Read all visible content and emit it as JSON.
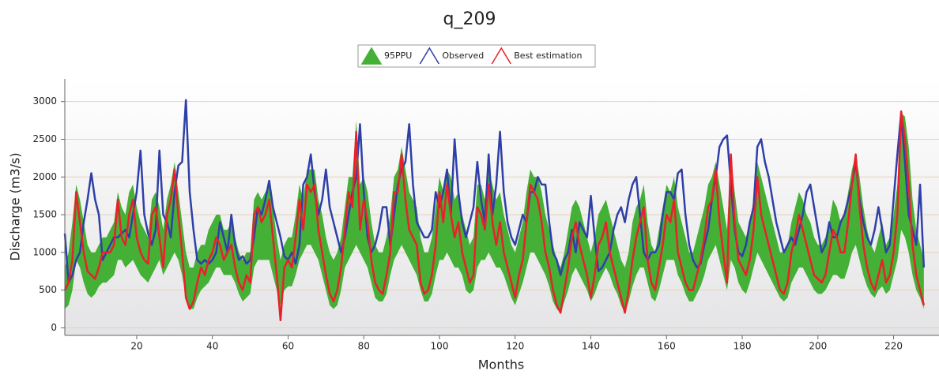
{
  "chart_data": {
    "type": "line",
    "title": "q_209",
    "x_label": "Months",
    "y_label": "Discharge (m3/s)",
    "x": [
      1,
      2,
      3,
      4,
      5,
      6,
      7,
      8,
      9,
      10,
      11,
      12,
      13,
      14,
      15,
      16,
      17,
      18,
      19,
      20,
      21,
      22,
      23,
      24,
      25,
      26,
      27,
      28,
      29,
      30,
      31,
      32,
      33,
      34,
      35,
      36,
      37,
      38,
      39,
      40,
      41,
      42,
      43,
      44,
      45,
      46,
      47,
      48,
      49,
      50,
      51,
      52,
      53,
      54,
      55,
      56,
      57,
      58,
      59,
      60,
      61,
      62,
      63,
      64,
      65,
      66,
      67,
      68,
      69,
      70,
      71,
      72,
      73,
      74,
      75,
      76,
      77,
      78,
      79,
      80,
      81,
      82,
      83,
      84,
      85,
      86,
      87,
      88,
      89,
      90,
      91,
      92,
      93,
      94,
      95,
      96,
      97,
      98,
      99,
      100,
      101,
      102,
      103,
      104,
      105,
      106,
      107,
      108,
      109,
      110,
      111,
      112,
      113,
      114,
      115,
      116,
      117,
      118,
      119,
      120,
      121,
      122,
      123,
      124,
      125,
      126,
      127,
      128,
      129,
      130,
      131,
      132,
      133,
      134,
      135,
      136,
      137,
      138,
      139,
      140,
      141,
      142,
      143,
      144,
      145,
      146,
      147,
      148,
      149,
      150,
      151,
      152,
      153,
      154,
      155,
      156,
      157,
      158,
      159,
      160,
      161,
      162,
      163,
      164,
      165,
      166,
      167,
      168,
      169,
      170,
      171,
      172,
      173,
      174,
      175,
      176,
      177,
      178,
      179,
      180,
      181,
      182,
      183,
      184,
      185,
      186,
      187,
      188,
      189,
      190,
      191,
      192,
      193,
      194,
      195,
      196,
      197,
      198,
      199,
      200,
      201,
      202,
      203,
      204,
      205,
      206,
      207,
      208,
      209,
      210,
      211,
      212,
      213,
      214,
      215,
      216,
      217,
      218,
      219,
      220,
      221,
      222,
      223,
      224,
      225,
      226,
      227,
      228
    ],
    "band": {
      "name": "95PPU",
      "color": "#44b035",
      "lower": [
        250,
        300,
        500,
        900,
        800,
        600,
        450,
        400,
        450,
        550,
        600,
        600,
        650,
        700,
        900,
        900,
        800,
        850,
        900,
        800,
        700,
        650,
        600,
        700,
        800,
        900,
        700,
        800,
        900,
        1000,
        900,
        700,
        400,
        250,
        250,
        400,
        500,
        550,
        600,
        700,
        800,
        800,
        700,
        700,
        700,
        600,
        450,
        350,
        400,
        450,
        800,
        900,
        900,
        900,
        900,
        700,
        500,
        300,
        500,
        550,
        550,
        700,
        900,
        1000,
        1100,
        1100,
        1000,
        900,
        700,
        500,
        300,
        250,
        300,
        500,
        800,
        900,
        1000,
        1100,
        1000,
        900,
        800,
        600,
        400,
        350,
        350,
        450,
        700,
        900,
        1000,
        1100,
        1000,
        900,
        800,
        700,
        500,
        350,
        350,
        450,
        700,
        900,
        900,
        1000,
        900,
        800,
        800,
        700,
        500,
        450,
        500,
        800,
        900,
        900,
        1000,
        900,
        800,
        800,
        700,
        550,
        400,
        300,
        450,
        600,
        800,
        1000,
        1000,
        900,
        800,
        700,
        550,
        350,
        250,
        200,
        350,
        500,
        700,
        800,
        700,
        600,
        500,
        350,
        450,
        600,
        700,
        800,
        700,
        550,
        450,
        300,
        200,
        350,
        550,
        700,
        800,
        800,
        600,
        400,
        350,
        500,
        700,
        900,
        900,
        900,
        700,
        600,
        450,
        350,
        350,
        450,
        550,
        700,
        900,
        1000,
        1100,
        900,
        700,
        500,
        900,
        800,
        600,
        500,
        450,
        600,
        800,
        1000,
        900,
        800,
        700,
        600,
        500,
        400,
        350,
        400,
        600,
        700,
        800,
        800,
        700,
        600,
        500,
        450,
        450,
        500,
        600,
        700,
        700,
        650,
        650,
        800,
        1000,
        1100,
        900,
        700,
        550,
        450,
        400,
        500,
        550,
        450,
        500,
        700,
        900,
        1300,
        1200,
        1000,
        700,
        500,
        400,
        250
      ],
      "upper": [
        800,
        1000,
        1400,
        1900,
        1700,
        1400,
        1100,
        1000,
        1000,
        1100,
        1200,
        1200,
        1300,
        1400,
        1800,
        1600,
        1500,
        1800,
        1900,
        1600,
        1400,
        1300,
        1200,
        1700,
        1800,
        1600,
        1300,
        1700,
        1900,
        2200,
        1800,
        1400,
        1000,
        800,
        800,
        1000,
        1100,
        1100,
        1300,
        1400,
        1500,
        1500,
        1300,
        1300,
        1400,
        1200,
        1000,
        900,
        1000,
        1000,
        1700,
        1800,
        1700,
        1800,
        1900,
        1600,
        1200,
        900,
        1100,
        1200,
        1200,
        1500,
        1900,
        1700,
        2100,
        2100,
        2100,
        1700,
        1500,
        1200,
        1000,
        900,
        1000,
        1200,
        1600,
        2000,
        2000,
        2750,
        1900,
        2000,
        1800,
        1400,
        1100,
        1000,
        1000,
        1200,
        1500,
        2000,
        2100,
        2400,
        2100,
        1800,
        1700,
        1600,
        1200,
        1000,
        1000,
        1200,
        1600,
        2000,
        1800,
        2100,
        2000,
        1700,
        1800,
        1500,
        1300,
        1100,
        1200,
        1900,
        1900,
        1700,
        2100,
        1900,
        1700,
        1800,
        1500,
        1300,
        1100,
        1000,
        1200,
        1400,
        1800,
        2100,
        2000,
        2000,
        1800,
        1500,
        1300,
        1100,
        900,
        800,
        1000,
        1300,
        1600,
        1700,
        1600,
        1400,
        1200,
        1000,
        1200,
        1500,
        1600,
        1700,
        1500,
        1300,
        1100,
        900,
        800,
        1000,
        1400,
        1600,
        1700,
        1900,
        1400,
        1100,
        1000,
        1300,
        1600,
        1900,
        1800,
        2000,
        1600,
        1400,
        1200,
        1000,
        1000,
        1200,
        1400,
        1600,
        1900,
        2000,
        2200,
        1900,
        1600,
        1300,
        2300,
        1800,
        1400,
        1300,
        1200,
        1400,
        1700,
        2200,
        2000,
        1800,
        1600,
        1400,
        1200,
        1000,
        1000,
        1100,
        1400,
        1600,
        1800,
        1700,
        1500,
        1400,
        1200,
        1100,
        1100,
        1200,
        1400,
        1700,
        1600,
        1400,
        1500,
        1800,
        2100,
        2300,
        2000,
        1600,
        1300,
        1100,
        1000,
        1200,
        1400,
        1100,
        1200,
        1500,
        1900,
        2850,
        2800,
        2400,
        1700,
        1300,
        1100,
        900
      ]
    },
    "series": [
      {
        "name": "Observed",
        "color": "#2f3fa8",
        "values": [
          1250,
          600,
          700,
          900,
          1000,
          1400,
          1700,
          2050,
          1700,
          1500,
          900,
          1000,
          1100,
          1200,
          1200,
          1250,
          1300,
          1200,
          1500,
          1800,
          2350,
          1500,
          1250,
          1100,
          1300,
          2350,
          1500,
          1400,
          1200,
          1800,
          2150,
          2200,
          3020,
          1800,
          1300,
          900,
          850,
          900,
          850,
          900,
          1000,
          1400,
          1200,
          1000,
          1500,
          1100,
          900,
          950,
          850,
          900,
          1200,
          1600,
          1500,
          1700,
          1950,
          1600,
          1400,
          1200,
          950,
          900,
          1000,
          850,
          1100,
          1900,
          2000,
          2300,
          1800,
          1500,
          1700,
          2100,
          1600,
          1400,
          1200,
          1000,
          1200,
          1500,
          1800,
          2000,
          2700,
          1800,
          1200,
          1000,
          1100,
          1300,
          1600,
          1600,
          1100,
          1500,
          1900,
          2100,
          2200,
          2700,
          1900,
          1400,
          1300,
          1200,
          1200,
          1300,
          1800,
          1600,
          1800,
          2100,
          1500,
          2500,
          1800,
          1400,
          1200,
          1400,
          1600,
          2200,
          1700,
          1400,
          2300,
          1500,
          1900,
          2600,
          1800,
          1400,
          1200,
          1100,
          1300,
          1500,
          1400,
          1800,
          1800,
          2000,
          1900,
          1900,
          1400,
          1000,
          900,
          700,
          900,
          1000,
          1300,
          1000,
          1400,
          1300,
          1200,
          1750,
          1200,
          750,
          800,
          900,
          1000,
          1300,
          1500,
          1600,
          1400,
          1700,
          1900,
          2000,
          1500,
          1000,
          900,
          1000,
          1000,
          1100,
          1500,
          1800,
          1800,
          1700,
          2050,
          2100,
          1500,
          1100,
          900,
          800,
          850,
          1100,
          1300,
          1700,
          2000,
          2400,
          2500,
          2550,
          1900,
          1300,
          1000,
          950,
          1100,
          1400,
          1600,
          2400,
          2500,
          2200,
          2000,
          1700,
          1400,
          1200,
          1000,
          1100,
          1200,
          1100,
          1300,
          1500,
          1800,
          1900,
          1600,
          1300,
          1000,
          1100,
          1400,
          1200,
          1200,
          1400,
          1500,
          1700,
          1900,
          2200,
          1700,
          1400,
          1200,
          1100,
          1300,
          1600,
          1300,
          1000,
          1100,
          1700,
          2300,
          2850,
          2200,
          1500,
          1300,
          1100,
          1900,
          800
        ]
      },
      {
        "name": "Best estimation",
        "color": "#e8222a",
        "values": [
          500,
          600,
          900,
          1800,
          1400,
          1000,
          750,
          700,
          650,
          800,
          1000,
          1000,
          1000,
          1100,
          1700,
          1200,
          1100,
          1500,
          1700,
          1200,
          1000,
          900,
          850,
          1500,
          1600,
          1200,
          800,
          1500,
          1700,
          2100,
          1500,
          1000,
          400,
          250,
          350,
          600,
          800,
          700,
          900,
          1000,
          1200,
          1100,
          900,
          1000,
          1100,
          800,
          600,
          500,
          700,
          600,
          1500,
          1600,
          1400,
          1500,
          1700,
          1200,
          700,
          100,
          800,
          900,
          800,
          1200,
          1700,
          1300,
          1900,
          1800,
          1900,
          1300,
          1000,
          700,
          450,
          350,
          500,
          800,
          1300,
          1800,
          1600,
          2600,
          1300,
          1700,
          1400,
          900,
          600,
          500,
          450,
          700,
          1000,
          1800,
          1800,
          2300,
          1700,
          1300,
          1200,
          1100,
          600,
          450,
          500,
          700,
          1100,
          1800,
          1400,
          1900,
          1500,
          1200,
          1400,
          1000,
          800,
          600,
          700,
          1600,
          1500,
          1300,
          1900,
          1400,
          1100,
          1400,
          1000,
          800,
          600,
          400,
          700,
          900,
          1400,
          1900,
          1800,
          1700,
          1400,
          1000,
          800,
          500,
          300,
          200,
          500,
          800,
          1200,
          1400,
          1100,
          900,
          700,
          400,
          700,
          1100,
          1200,
          1400,
          1000,
          800,
          600,
          400,
          200,
          500,
          900,
          1200,
          1400,
          1600,
          900,
          600,
          500,
          800,
          1100,
          1500,
          1400,
          1700,
          1000,
          800,
          600,
          500,
          500,
          700,
          900,
          1200,
          1600,
          1700,
          2100,
          1400,
          1000,
          600,
          2300,
          1400,
          900,
          800,
          700,
          900,
          1300,
          2000,
          1500,
          1300,
          1100,
          900,
          700,
          500,
          450,
          600,
          1000,
          1200,
          1500,
          1300,
          1100,
          900,
          700,
          650,
          600,
          700,
          1000,
          1300,
          1200,
          1000,
          1000,
          1400,
          1900,
          2300,
          1600,
          1100,
          800,
          600,
          500,
          700,
          900,
          600,
          700,
          1000,
          1500,
          2870,
          2500,
          1900,
          1100,
          700,
          500,
          300
        ]
      }
    ],
    "xlim": [
      1,
      232
    ],
    "xticks": [
      20,
      40,
      60,
      80,
      100,
      120,
      140,
      160,
      180,
      200,
      220
    ],
    "ylim": [
      -100,
      3300
    ],
    "yticks": [
      0,
      500,
      1000,
      1500,
      2000,
      2500,
      3000
    ],
    "grid": true
  }
}
